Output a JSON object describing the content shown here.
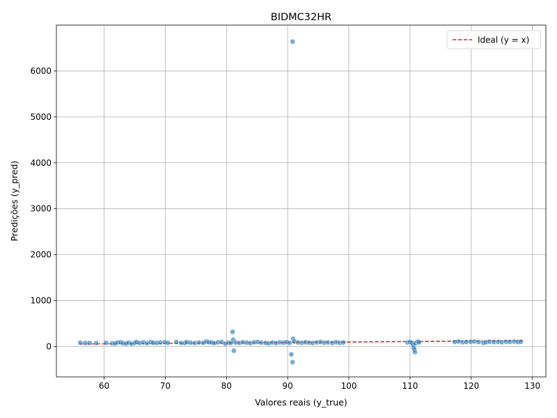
{
  "chart_data": {
    "type": "scatter",
    "title": "BIDMC32HR",
    "xlabel": "Valores reais (y_true)",
    "ylabel": "Predições (y_pred)",
    "xlim": [
      52.2,
      132.2
    ],
    "ylim": [
      -660,
      7000
    ],
    "xticks": [
      60,
      70,
      80,
      90,
      100,
      110,
      120,
      130
    ],
    "yticks": [
      0,
      1000,
      2000,
      3000,
      4000,
      5000,
      6000
    ],
    "grid": true,
    "legend_position": "top-right",
    "colors": {
      "points": "#1f77b4",
      "ideal": "#d62728"
    },
    "series": [
      {
        "name": "",
        "points": [
          [
            56.1,
            85
          ],
          [
            56.9,
            78
          ],
          [
            57.6,
            80
          ],
          [
            58.7,
            75
          ],
          [
            60.3,
            82
          ],
          [
            61.3,
            70
          ],
          [
            61.8,
            68
          ],
          [
            62.2,
            90
          ],
          [
            62.7,
            95
          ],
          [
            63.1,
            72
          ],
          [
            63.6,
            65
          ],
          [
            64.0,
            88
          ],
          [
            64.5,
            60
          ],
          [
            65.0,
            78
          ],
          [
            65.3,
            100
          ],
          [
            65.8,
            80
          ],
          [
            66.4,
            92
          ],
          [
            67.0,
            75
          ],
          [
            67.6,
            98
          ],
          [
            68.0,
            85
          ],
          [
            68.6,
            80
          ],
          [
            69.2,
            90
          ],
          [
            69.9,
            95
          ],
          [
            70.4,
            82
          ],
          [
            71.8,
            100
          ],
          [
            72.6,
            80
          ],
          [
            73.2,
            75
          ],
          [
            73.5,
            100
          ],
          [
            74.1,
            85
          ],
          [
            74.8,
            78
          ],
          [
            75.5,
            90
          ],
          [
            76.2,
            82
          ],
          [
            76.7,
            110
          ],
          [
            77.1,
            95
          ],
          [
            77.6,
            88
          ],
          [
            78.0,
            75
          ],
          [
            78.6,
            92
          ],
          [
            79.2,
            100
          ],
          [
            79.8,
            60
          ],
          [
            80.3,
            85
          ],
          [
            80.7,
            78
          ],
          [
            81.0,
            320
          ],
          [
            81.1,
            150
          ],
          [
            81.2,
            -90
          ],
          [
            81.5,
            90
          ],
          [
            82.1,
            80
          ],
          [
            82.7,
            95
          ],
          [
            83.3,
            85
          ],
          [
            83.9,
            75
          ],
          [
            84.5,
            92
          ],
          [
            85.1,
            100
          ],
          [
            85.7,
            85
          ],
          [
            86.4,
            80
          ],
          [
            86.9,
            70
          ],
          [
            87.5,
            88
          ],
          [
            88.1,
            75
          ],
          [
            88.7,
            92
          ],
          [
            89.3,
            85
          ],
          [
            89.8,
            98
          ],
          [
            90.3,
            80
          ],
          [
            90.6,
            -170
          ],
          [
            90.8,
            -340
          ],
          [
            90.9,
            170
          ],
          [
            91.1,
            110
          ],
          [
            91.7,
            90
          ],
          [
            92.3,
            82
          ],
          [
            92.9,
            95
          ],
          [
            93.5,
            85
          ],
          [
            94.1,
            78
          ],
          [
            94.8,
            92
          ],
          [
            95.4,
            100
          ],
          [
            96.0,
            85
          ],
          [
            96.6,
            90
          ],
          [
            97.3,
            78
          ],
          [
            97.9,
            95
          ],
          [
            98.5,
            82
          ],
          [
            99.1,
            90
          ],
          [
            109.6,
            90
          ],
          [
            110.0,
            100
          ],
          [
            110.3,
            80
          ],
          [
            110.5,
            40
          ],
          [
            110.6,
            -20
          ],
          [
            110.7,
            -60
          ],
          [
            110.8,
            -120
          ],
          [
            110.9,
            70
          ],
          [
            111.3,
            110
          ],
          [
            111.5,
            92
          ],
          [
            117.3,
            100
          ],
          [
            117.9,
            110
          ],
          [
            118.6,
            95
          ],
          [
            119.2,
            100
          ],
          [
            119.9,
            105
          ],
          [
            120.5,
            110
          ],
          [
            121.2,
            100
          ],
          [
            122.0,
            80
          ],
          [
            122.4,
            95
          ],
          [
            123.0,
            105
          ],
          [
            123.7,
            98
          ],
          [
            124.4,
            100
          ],
          [
            125.0,
            95
          ],
          [
            125.7,
            105
          ],
          [
            126.3,
            100
          ],
          [
            127.0,
            110
          ],
          [
            127.6,
            100
          ],
          [
            128.1,
            105
          ],
          [
            90.8,
            6640
          ]
        ]
      },
      {
        "name": "Ideal (y = x)",
        "style": "dashed",
        "x": [
          56.0,
          128.4
        ],
        "y": [
          56.0,
          128.4
        ]
      }
    ]
  }
}
